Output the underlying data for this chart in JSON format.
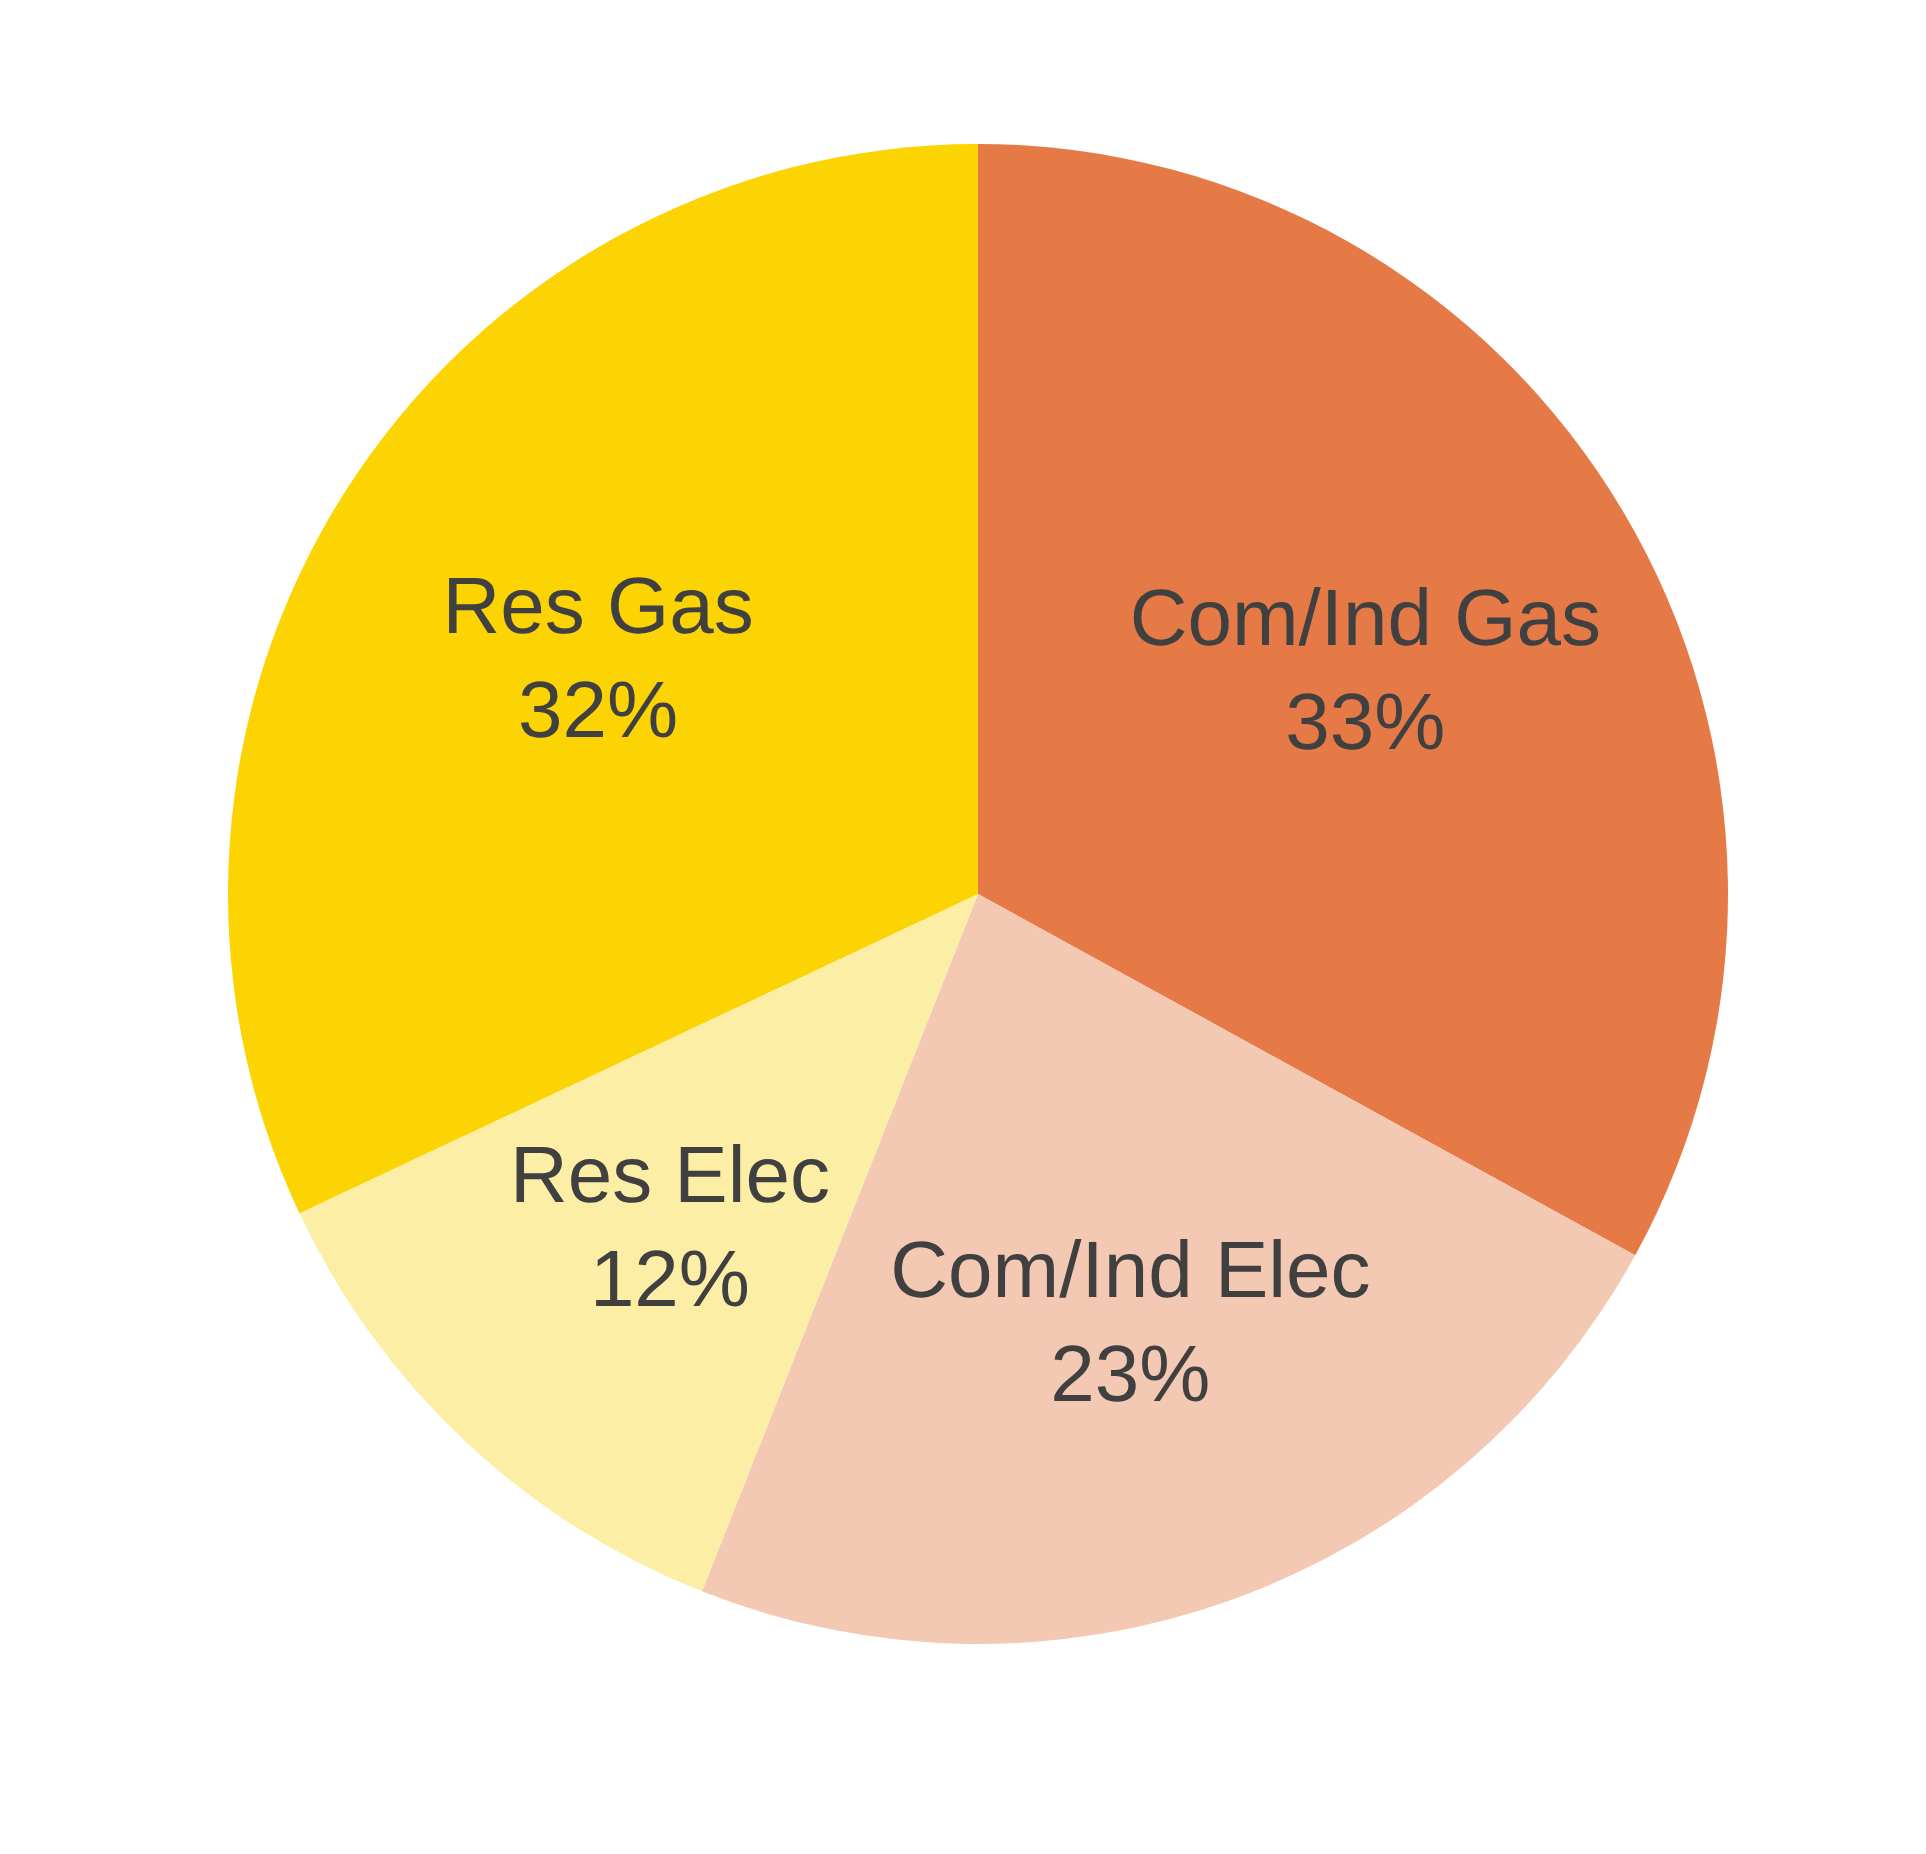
{
  "chart_data": {
    "type": "pie",
    "categories": [
      "Com/Ind Gas",
      "Com/Ind Elec",
      "Res Elec",
      "Res Gas"
    ],
    "values": [
      33,
      23,
      12,
      32
    ],
    "value_labels": [
      "33%",
      "23%",
      "12%",
      "32%"
    ],
    "colors": [
      "#e67a47",
      "#f4c9b3",
      "#fdeea6",
      "#fcd303"
    ]
  }
}
